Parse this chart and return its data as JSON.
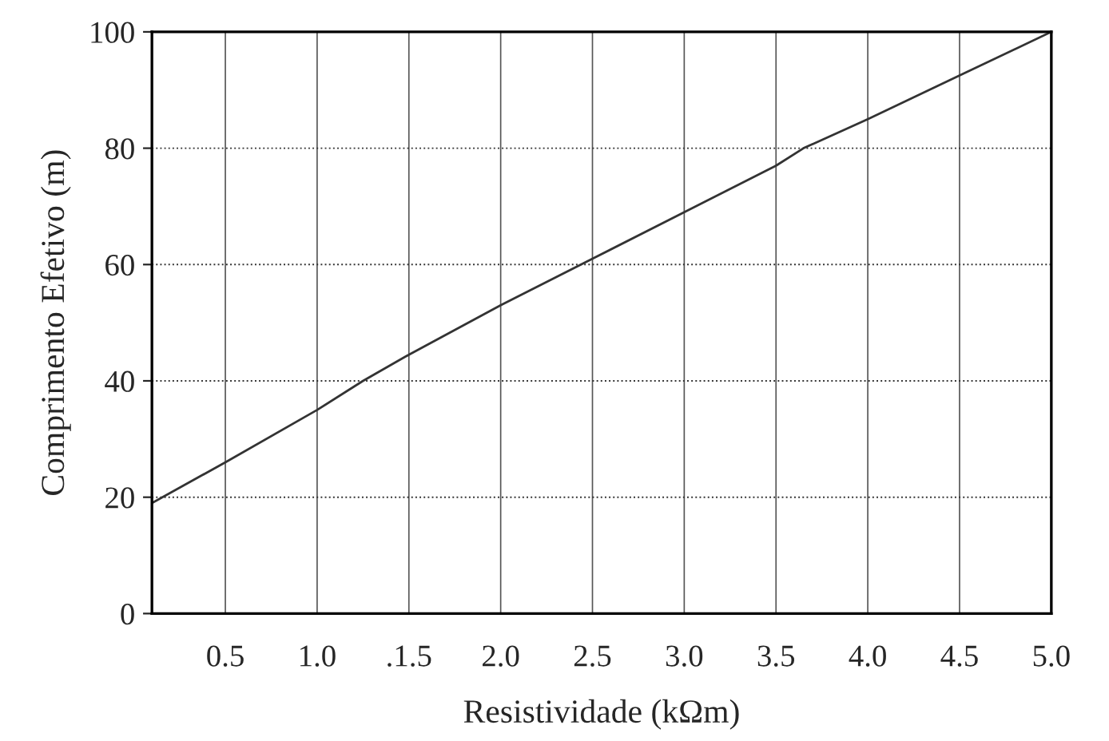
{
  "chart_data": {
    "type": "line",
    "xlabel": "Resistividade (kΩm)",
    "ylabel": "Comprimento Efetivo (m)",
    "x": [
      0.1,
      0.5,
      1.0,
      1.25,
      1.5,
      2.0,
      2.5,
      3.0,
      3.5,
      3.65,
      4.0,
      4.5,
      5.0
    ],
    "series": [
      {
        "color": "#333333",
        "values": [
          19,
          26,
          35,
          40,
          44.5,
          53,
          61,
          69,
          77,
          80,
          85,
          92.5,
          100
        ]
      }
    ],
    "xlim": [
      0.1,
      5.0
    ],
    "xticks": [
      {
        "value": 0.5,
        "label": "0.5"
      },
      {
        "value": 1.0,
        "label": "1.0"
      },
      {
        "value": 1.5,
        "label": ".1.5"
      },
      {
        "value": 2.0,
        "label": "2.0"
      },
      {
        "value": 2.5,
        "label": "2.5"
      },
      {
        "value": 3.0,
        "label": "3.0"
      },
      {
        "value": 3.5,
        "label": "3.5"
      },
      {
        "value": 4.0,
        "label": "4.0"
      },
      {
        "value": 4.5,
        "label": "4.5"
      },
      {
        "value": 5.0,
        "label": "5.0"
      }
    ],
    "ylim": [
      0,
      100
    ],
    "yticks": [
      0,
      20,
      40,
      60,
      80,
      100
    ],
    "grid": true,
    "line_style": "solid",
    "marker": "none"
  }
}
